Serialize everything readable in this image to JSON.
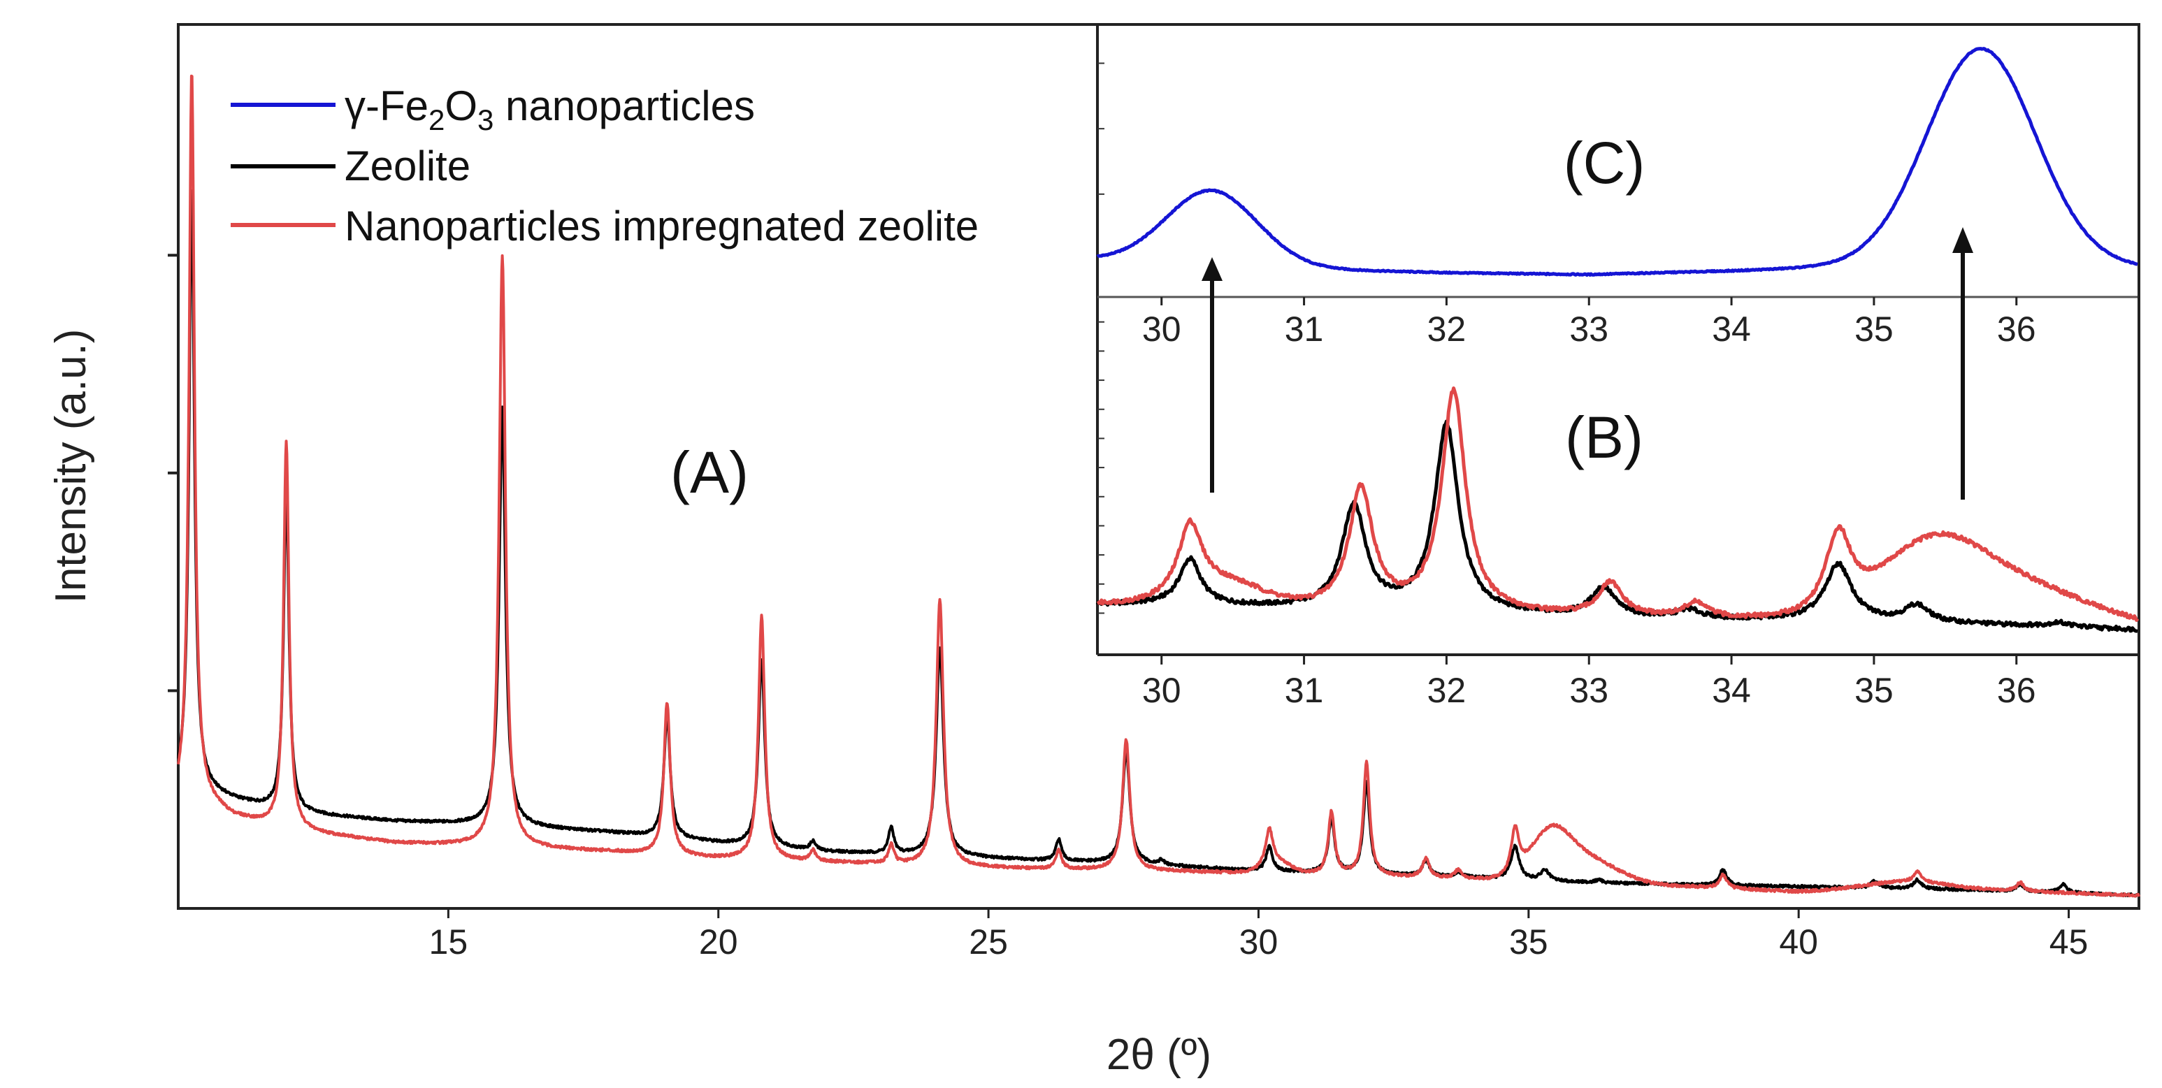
{
  "chart_data": [
    {
      "id": "main",
      "type": "line",
      "panel_label": "(A)",
      "xlabel": "2θ (º)",
      "ylabel": "Intensity (a.u.)",
      "xlim": [
        10,
        46.3
      ],
      "ylim": [
        -0.15,
        10
      ],
      "xticks": [
        15,
        20,
        25,
        30,
        35,
        40,
        45
      ],
      "x_tick_labels": [
        "15",
        "20",
        "25",
        "30",
        "35",
        "40",
        "45"
      ],
      "y_ticks_unlabeled": [
        2.35,
        4.85,
        7.35
      ],
      "legend": {
        "placement": "top-left",
        "entries": [
          {
            "series": "gamma_fe2o3",
            "label_prefix": "γ-Fe",
            "sub1": "2",
            "mid": "O",
            "sub2": "3",
            "suffix": " nanoparticles",
            "color": "#1515d4"
          },
          {
            "series": "zeolite",
            "label": "Zeolite",
            "color": "#000000"
          },
          {
            "series": "impregnated",
            "label": "Nanoparticles impregnated zeolite",
            "color": "#e04848"
          }
        ]
      },
      "series": [
        {
          "name": "Zeolite",
          "color": "#000000",
          "baseline": [
            [
              10,
              1.2
            ],
            [
              10.2,
              1.25
            ],
            [
              11,
              1.1
            ],
            [
              12,
              0.95
            ],
            [
              14,
              0.85
            ],
            [
              16,
              0.8
            ],
            [
              18,
              0.72
            ],
            [
              20,
              0.6
            ],
            [
              22,
              0.5
            ],
            [
              24,
              0.45
            ],
            [
              26,
              0.4
            ],
            [
              28,
              0.35
            ],
            [
              30,
              0.28
            ],
            [
              32,
              0.24
            ],
            [
              34,
              0.2
            ],
            [
              36,
              0.15
            ],
            [
              38,
              0.12
            ],
            [
              40,
              0.1
            ],
            [
              42,
              0.08
            ],
            [
              44,
              0.05
            ],
            [
              46.3,
              0.0
            ]
          ],
          "peaks": [
            {
              "x": 10.25,
              "h": 6.9,
              "w": 0.06
            },
            {
              "x": 12.0,
              "h": 3.7,
              "w": 0.06
            },
            {
              "x": 16.0,
              "h": 4.8,
              "w": 0.07
            },
            {
              "x": 19.05,
              "h": 1.4,
              "w": 0.07
            },
            {
              "x": 20.8,
              "h": 2.15,
              "w": 0.07
            },
            {
              "x": 21.75,
              "h": 0.1,
              "w": 0.06
            },
            {
              "x": 23.2,
              "h": 0.3,
              "w": 0.06
            },
            {
              "x": 24.1,
              "h": 2.4,
              "w": 0.08
            },
            {
              "x": 26.3,
              "h": 0.25,
              "w": 0.06
            },
            {
              "x": 27.55,
              "h": 1.3,
              "w": 0.08
            },
            {
              "x": 28.2,
              "h": 0.05,
              "w": 0.06
            },
            {
              "x": 30.2,
              "h": 0.28,
              "w": 0.07
            },
            {
              "x": 31.35,
              "h": 0.62,
              "w": 0.07
            },
            {
              "x": 32.0,
              "h": 1.05,
              "w": 0.07
            },
            {
              "x": 33.1,
              "h": 0.18,
              "w": 0.08
            },
            {
              "x": 33.7,
              "h": 0.06,
              "w": 0.08
            },
            {
              "x": 34.75,
              "h": 0.38,
              "w": 0.09
            },
            {
              "x": 35.3,
              "h": 0.12,
              "w": 0.09
            },
            {
              "x": 36.3,
              "h": 0.03,
              "w": 0.08
            },
            {
              "x": 38.6,
              "h": 0.18,
              "w": 0.08
            },
            {
              "x": 41.4,
              "h": 0.08,
              "w": 0.08
            },
            {
              "x": 42.2,
              "h": 0.1,
              "w": 0.08
            },
            {
              "x": 44.1,
              "h": 0.08,
              "w": 0.08
            },
            {
              "x": 44.9,
              "h": 0.1,
              "w": 0.08
            }
          ],
          "bumps": []
        },
        {
          "name": "Nanoparticles impregnated zeolite",
          "color": "#e04848",
          "baseline": [
            [
              10,
              1.05
            ],
            [
              10.4,
              1.1
            ],
            [
              11,
              0.9
            ],
            [
              12,
              0.75
            ],
            [
              14,
              0.6
            ],
            [
              16,
              0.55
            ],
            [
              18,
              0.5
            ],
            [
              20,
              0.42
            ],
            [
              22,
              0.38
            ],
            [
              24,
              0.33
            ],
            [
              26,
              0.3
            ],
            [
              28,
              0.28
            ],
            [
              30,
              0.25
            ],
            [
              32,
              0.22
            ],
            [
              34,
              0.18
            ],
            [
              36,
              0.14
            ],
            [
              38,
              0.1
            ],
            [
              40,
              0.04
            ],
            [
              42,
              0.06
            ],
            [
              44,
              0.05
            ],
            [
              46.3,
              0.0
            ]
          ],
          "peaks": [
            {
              "x": 10.25,
              "h": 8.4,
              "w": 0.06
            },
            {
              "x": 12.0,
              "h": 4.45,
              "w": 0.06
            },
            {
              "x": 16.0,
              "h": 6.8,
              "w": 0.07
            },
            {
              "x": 19.05,
              "h": 1.75,
              "w": 0.07
            },
            {
              "x": 20.8,
              "h": 2.8,
              "w": 0.07
            },
            {
              "x": 21.75,
              "h": 0.12,
              "w": 0.06
            },
            {
              "x": 23.2,
              "h": 0.22,
              "w": 0.06
            },
            {
              "x": 24.1,
              "h": 3.05,
              "w": 0.08
            },
            {
              "x": 26.3,
              "h": 0.22,
              "w": 0.06
            },
            {
              "x": 27.55,
              "h": 1.5,
              "w": 0.08
            },
            {
              "x": 30.2,
              "h": 0.42,
              "w": 0.08
            },
            {
              "x": 31.35,
              "h": 0.72,
              "w": 0.07
            },
            {
              "x": 32.0,
              "h": 1.3,
              "w": 0.07
            },
            {
              "x": 33.1,
              "h": 0.22,
              "w": 0.08
            },
            {
              "x": 33.7,
              "h": 0.1,
              "w": 0.08
            },
            {
              "x": 34.75,
              "h": 0.52,
              "w": 0.09
            },
            {
              "x": 38.6,
              "h": 0.15,
              "w": 0.08
            },
            {
              "x": 42.2,
              "h": 0.12,
              "w": 0.08
            },
            {
              "x": 44.1,
              "h": 0.1,
              "w": 0.08
            }
          ],
          "bumps": [
            {
              "x": 35.4,
              "h": 0.45,
              "w": 0.35
            },
            {
              "x": 36.0,
              "h": 0.3,
              "w": 0.6
            },
            {
              "x": 30.35,
              "h": 0.12,
              "w": 0.25
            },
            {
              "x": 42.0,
              "h": 0.1,
              "w": 0.8
            }
          ]
        }
      ]
    },
    {
      "id": "inset_b",
      "type": "line",
      "panel_label": "(B)",
      "xlim": [
        29.55,
        36.85
      ],
      "ylim": [
        -0.3,
        4
      ],
      "xticks": [
        30,
        31,
        32,
        33,
        34,
        35,
        36
      ],
      "x_tick_labels": [
        "30",
        "31",
        "32",
        "33",
        "34",
        "35",
        "36"
      ],
      "y_minor_ticks": [
        0.2,
        0.55,
        0.9,
        1.25,
        1.6,
        1.95,
        2.3,
        2.65,
        3.0,
        3.35,
        3.7
      ],
      "series": [
        {
          "name": "Zeolite",
          "color": "#000000",
          "baseline": [
            [
              29.55,
              0.3
            ],
            [
              30,
              0.3
            ],
            [
              31,
              0.25
            ],
            [
              32,
              0.2
            ],
            [
              33,
              0.15
            ],
            [
              34,
              0.12
            ],
            [
              35,
              0.1
            ],
            [
              36,
              0.05
            ],
            [
              36.85,
              0.0
            ]
          ],
          "peaks": [
            {
              "x": 30.2,
              "h": 0.55,
              "w": 0.09
            },
            {
              "x": 31.35,
              "h": 1.25,
              "w": 0.1
            },
            {
              "x": 32.0,
              "h": 2.25,
              "w": 0.1
            },
            {
              "x": 33.1,
              "h": 0.35,
              "w": 0.1
            },
            {
              "x": 33.7,
              "h": 0.1,
              "w": 0.1
            },
            {
              "x": 34.75,
              "h": 0.68,
              "w": 0.11
            },
            {
              "x": 35.3,
              "h": 0.2,
              "w": 0.1
            },
            {
              "x": 36.3,
              "h": 0.05,
              "w": 0.1
            }
          ],
          "bumps": []
        },
        {
          "name": "Nanoparticles impregnated zeolite",
          "color": "#e04848",
          "baseline": [
            [
              29.55,
              0.3
            ],
            [
              30,
              0.3
            ],
            [
              31,
              0.25
            ],
            [
              32,
              0.2
            ],
            [
              33,
              0.15
            ],
            [
              34,
              0.12
            ],
            [
              35,
              0.1
            ],
            [
              36,
              0.05
            ],
            [
              36.85,
              0.0
            ]
          ],
          "peaks": [
            {
              "x": 30.2,
              "h": 0.85,
              "w": 0.1
            },
            {
              "x": 31.4,
              "h": 1.45,
              "w": 0.1
            },
            {
              "x": 32.05,
              "h": 2.65,
              "w": 0.1
            },
            {
              "x": 33.15,
              "h": 0.4,
              "w": 0.1
            },
            {
              "x": 33.75,
              "h": 0.18,
              "w": 0.1
            },
            {
              "x": 34.75,
              "h": 0.95,
              "w": 0.11
            }
          ],
          "bumps": [
            {
              "x": 30.45,
              "h": 0.25,
              "w": 0.25
            },
            {
              "x": 35.4,
              "h": 0.72,
              "w": 0.35
            },
            {
              "x": 35.95,
              "h": 0.5,
              "w": 0.55
            }
          ]
        }
      ]
    },
    {
      "id": "inset_c",
      "type": "line",
      "panel_label": "(C)",
      "xlim": [
        29.55,
        36.85
      ],
      "ylim": [
        -0.1,
        1.35
      ],
      "xticks": [
        30,
        31,
        32,
        33,
        34,
        35,
        36
      ],
      "x_tick_labels": [
        "30",
        "31",
        "32",
        "33",
        "34",
        "35",
        "36"
      ],
      "y_minor_ticks": [
        0.45,
        0.8,
        1.15
      ],
      "series": [
        {
          "name": "γ-Fe2O3 nanoparticles",
          "color": "#1515d4",
          "baseline": [
            [
              29.55,
              0.1
            ],
            [
              30,
              0.08
            ],
            [
              31,
              0.05
            ],
            [
              32,
              0.03
            ],
            [
              33,
              0.02
            ],
            [
              34,
              0.04
            ],
            [
              35,
              0.07
            ],
            [
              36,
              0.08
            ],
            [
              36.85,
              0.06
            ]
          ],
          "peaks": [],
          "bumps": [
            {
              "x": 30.35,
              "h": 0.4,
              "w": 0.32
            },
            {
              "x": 35.75,
              "h": 1.15,
              "w": 0.38
            }
          ]
        }
      ]
    }
  ],
  "annotations": {
    "arrows": [
      {
        "from_x": 30.35,
        "to_x": 30.35,
        "direction": "up",
        "meaning": "peak at ~30.35 in (B) corresponds to γ-Fe2O3 peak in (C)"
      },
      {
        "from_x": 35.75,
        "to_x": 35.75,
        "direction": "up",
        "meaning": "broad peak at ~35.75 in (B) corresponds to γ-Fe2O3 peak in (C)"
      }
    ]
  }
}
